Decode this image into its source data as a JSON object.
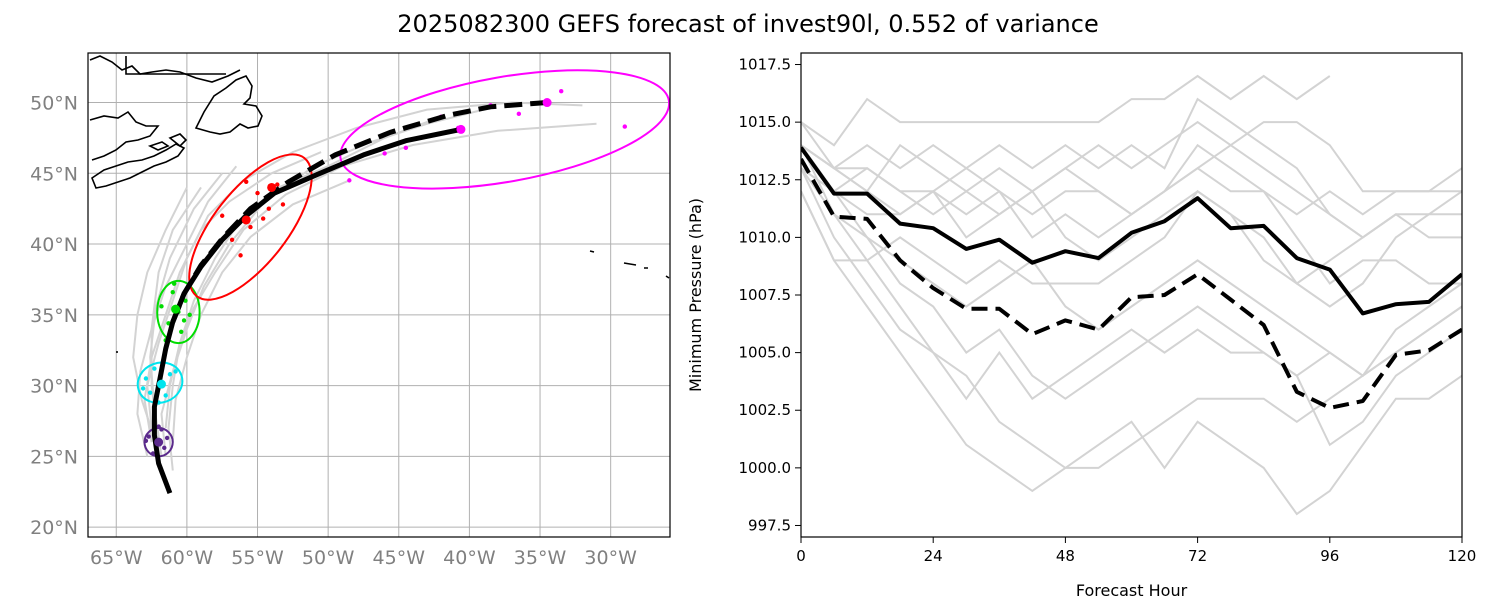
{
  "title": "2025082300 GEFS forecast of invest90l, 0.552 of variance",
  "chart_data": [
    {
      "type": "map",
      "title": "",
      "lon_range": [
        -67,
        -25.8
      ],
      "lat_range": [
        19.3,
        53.5
      ],
      "lon_ticks": [
        -65,
        -60,
        -55,
        -50,
        -45,
        -40,
        -35,
        -30
      ],
      "lon_tick_labels": [
        "65°W",
        "60°W",
        "55°W",
        "50°W",
        "45°W",
        "40°W",
        "35°W",
        "30°W"
      ],
      "lat_ticks": [
        20,
        25,
        30,
        35,
        40,
        45,
        50
      ],
      "lat_tick_labels": [
        "20°N",
        "25°N",
        "30°N",
        "35°N",
        "40°N",
        "45°N",
        "50°N"
      ],
      "grid": true,
      "mean_track": [
        [
          -61.2,
          22.4
        ],
        [
          -62.0,
          24.5
        ],
        [
          -62.3,
          26.5
        ],
        [
          -62.3,
          28.5
        ],
        [
          -61.9,
          30.5
        ],
        [
          -61.5,
          32.6
        ],
        [
          -61.0,
          34.5
        ],
        [
          -60.2,
          36.5
        ],
        [
          -59.0,
          38.4
        ],
        [
          -57.5,
          40.3
        ],
        [
          -55.8,
          42.0
        ],
        [
          -53.8,
          43.6
        ],
        [
          -50.8,
          44.9
        ],
        [
          -47.5,
          46.3
        ],
        [
          -44.5,
          47.3
        ],
        [
          -40.6,
          48.1
        ]
      ],
      "control_track": [
        [
          -61.0,
          34.5
        ],
        [
          -60.2,
          36.5
        ],
        [
          -59.0,
          38.5
        ],
        [
          -57.4,
          40.5
        ],
        [
          -55.5,
          42.5
        ],
        [
          -52.8,
          44.4
        ],
        [
          -49.5,
          46.3
        ],
        [
          -45.6,
          47.9
        ],
        [
          -41.5,
          49.1
        ],
        [
          -38.5,
          49.7
        ],
        [
          -34.5,
          50.0
        ]
      ],
      "member_tracks": [
        [
          [
            -62.5,
            26
          ],
          [
            -63.0,
            29
          ],
          [
            -62.5,
            32
          ],
          [
            -61.5,
            35
          ],
          [
            -60.5,
            38
          ],
          [
            -59.0,
            41
          ],
          [
            -57.0,
            43
          ],
          [
            -54.0,
            45
          ],
          [
            -50.5,
            46.5
          ]
        ],
        [
          [
            -61.0,
            24
          ],
          [
            -61.3,
            27
          ],
          [
            -61.0,
            30
          ],
          [
            -60.5,
            33
          ],
          [
            -59.5,
            36
          ],
          [
            -58.0,
            39
          ],
          [
            -56.0,
            42
          ],
          [
            -53.5,
            44
          ],
          [
            -50.0,
            45.5
          ],
          [
            -46.0,
            47.5
          ],
          [
            -42.0,
            49.0
          ]
        ],
        [
          [
            -62.8,
            25
          ],
          [
            -63.5,
            28
          ],
          [
            -63.3,
            31
          ],
          [
            -62.5,
            34
          ],
          [
            -61.5,
            37
          ],
          [
            -60.0,
            40
          ],
          [
            -58.5,
            43
          ],
          [
            -56.5,
            45.5
          ]
        ],
        [
          [
            -61.5,
            27
          ],
          [
            -61.2,
            30
          ],
          [
            -60.5,
            33
          ],
          [
            -59.5,
            35.5
          ],
          [
            -58.0,
            38
          ],
          [
            -56.0,
            41
          ],
          [
            -53.0,
            43.5
          ],
          [
            -49.0,
            45.5
          ],
          [
            -44.0,
            47
          ],
          [
            -38.0,
            48
          ],
          [
            -31.0,
            48.5
          ]
        ],
        [
          [
            -62.0,
            26
          ],
          [
            -62.5,
            30
          ],
          [
            -62.5,
            34
          ],
          [
            -62.0,
            38
          ],
          [
            -61.0,
            41
          ],
          [
            -59.0,
            44
          ]
        ],
        [
          [
            -61.5,
            25
          ],
          [
            -61.8,
            28
          ],
          [
            -61.0,
            31
          ],
          [
            -60.0,
            34
          ],
          [
            -58.8,
            37
          ],
          [
            -57.0,
            40
          ],
          [
            -54.5,
            43
          ],
          [
            -51.0,
            45.5
          ],
          [
            -47.0,
            47.2
          ],
          [
            -43.0,
            48.5
          ],
          [
            -39.0,
            49.5
          ]
        ],
        [
          [
            -62.2,
            26
          ],
          [
            -63.2,
            29
          ],
          [
            -63.8,
            32
          ],
          [
            -63.5,
            35
          ],
          [
            -62.8,
            38
          ],
          [
            -61.5,
            41
          ],
          [
            -60.0,
            44
          ]
        ],
        [
          [
            -61.0,
            26
          ],
          [
            -60.8,
            29
          ],
          [
            -60.0,
            32
          ],
          [
            -59.0,
            35
          ],
          [
            -57.5,
            38
          ],
          [
            -55.5,
            40.5
          ],
          [
            -52.5,
            42.8
          ],
          [
            -48.5,
            44.5
          ]
        ],
        [
          [
            -62.5,
            27
          ],
          [
            -62.8,
            30
          ],
          [
            -62.0,
            33
          ],
          [
            -61.0,
            36
          ],
          [
            -60.0,
            39
          ],
          [
            -58.5,
            42
          ],
          [
            -56.0,
            44.5
          ],
          [
            -52.5,
            46.5
          ],
          [
            -48.0,
            48.2
          ],
          [
            -43.0,
            49.5
          ],
          [
            -37.0,
            50.0
          ],
          [
            -32.0,
            49.8
          ]
        ],
        [
          [
            -61.8,
            25
          ],
          [
            -62.3,
            28.5
          ],
          [
            -62.6,
            32
          ],
          [
            -62.2,
            35.5
          ],
          [
            -61.2,
            39
          ],
          [
            -59.5,
            42.5
          ],
          [
            -57.5,
            45
          ]
        ]
      ],
      "member_points": [
        [
          -62.2,
          25.8
        ],
        [
          -62.7,
          26.4
        ],
        [
          -61.8,
          26.9
        ],
        [
          -62.4,
          25.2
        ],
        [
          -61.6,
          25.6
        ],
        [
          -62.9,
          26.1
        ],
        [
          -62.0,
          27.1
        ],
        [
          -61.4,
          26.3
        ],
        [
          -61.9,
          30.2
        ],
        [
          -62.6,
          29.5
        ],
        [
          -61.2,
          30.8
        ],
        [
          -62.9,
          30.5
        ],
        [
          -61.5,
          29.3
        ],
        [
          -62.3,
          31.2
        ],
        [
          -60.8,
          31.0
        ],
        [
          -62.0,
          28.8
        ],
        [
          -63.1,
          29.8
        ],
        [
          -61.7,
          31.5
        ],
        [
          -60.6,
          35.2
        ],
        [
          -61.3,
          34.4
        ],
        [
          -60.1,
          36.0
        ],
        [
          -61.0,
          36.6
        ],
        [
          -60.4,
          33.8
        ],
        [
          -61.8,
          35.6
        ],
        [
          -59.8,
          35.0
        ],
        [
          -60.9,
          37.2
        ],
        [
          -61.5,
          33.2
        ],
        [
          -60.2,
          34.6
        ],
        [
          -55.5,
          41.2
        ],
        [
          -56.8,
          40.3
        ],
        [
          -54.2,
          42.5
        ],
        [
          -57.5,
          42.0
        ],
        [
          -55.0,
          43.6
        ],
        [
          -53.6,
          44.2
        ],
        [
          -56.2,
          39.2
        ],
        [
          -54.6,
          41.8
        ],
        [
          -53.2,
          42.8
        ],
        [
          -55.8,
          44.4
        ],
        [
          -42.0,
          49.0
        ],
        [
          -40.8,
          48.2
        ],
        [
          -38.5,
          49.8
        ],
        [
          -44.5,
          46.8
        ],
        [
          -46.0,
          46.4
        ],
        [
          -36.5,
          49.2
        ],
        [
          -33.5,
          50.8
        ],
        [
          -29.0,
          48.3
        ],
        [
          -48.5,
          44.5
        ]
      ],
      "mean_points": [
        {
          "lon": -62.0,
          "lat": 26.0,
          "color": "#5b2a8c"
        },
        {
          "lon": -61.8,
          "lat": 30.1,
          "color": "#00e5ee"
        },
        {
          "lon": -60.8,
          "lat": 35.4,
          "color": "#00dd00"
        },
        {
          "lon": -55.8,
          "lat": 41.7,
          "color": "#ff0000"
        },
        {
          "lon": -54.0,
          "lat": 44.0,
          "color": "#ff0000"
        },
        {
          "lon": -40.6,
          "lat": 48.1,
          "color": "#ff00ff"
        },
        {
          "lon": -34.5,
          "lat": 50.0,
          "color": "#ff00ff"
        }
      ],
      "ellipses": [
        {
          "lon": -62.0,
          "lat": 26.0,
          "rx_deg": 1.0,
          "ry_deg": 1.0,
          "angle": 0,
          "color": "#5b2a8c"
        },
        {
          "lon": -61.9,
          "lat": 30.2,
          "rx_deg": 1.6,
          "ry_deg": 1.4,
          "angle": -20,
          "color": "#00e5ee"
        },
        {
          "lon": -60.6,
          "lat": 35.2,
          "rx_deg": 1.5,
          "ry_deg": 2.2,
          "angle": 0,
          "color": "#00dd00"
        },
        {
          "lon": -55.5,
          "lat": 41.2,
          "rx_deg": 6.2,
          "ry_deg": 2.6,
          "angle": -52,
          "color": "#ff0000"
        },
        {
          "lon": -37.5,
          "lat": 48.1,
          "rx_deg": 11.8,
          "ry_deg": 3.7,
          "angle": -10,
          "color": "#ff00ff"
        }
      ]
    },
    {
      "type": "line",
      "title": "",
      "xlabel": "Forecast Hour",
      "ylabel": "Minimum Pressure (hPa)",
      "xlim": [
        0,
        120
      ],
      "ylim": [
        997,
        1018
      ],
      "xticks": [
        0,
        24,
        48,
        72,
        96,
        120
      ],
      "yticks": [
        997.5,
        1000.0,
        1002.5,
        1005.0,
        1007.5,
        1010.0,
        1012.5,
        1015.0,
        1017.5
      ],
      "ytick_labels": [
        "997.5",
        "1000.0",
        "1002.5",
        "1005.0",
        "1007.5",
        "1010.0",
        "1012.5",
        "1015.0",
        "1017.5"
      ],
      "x": [
        0,
        6,
        12,
        18,
        24,
        30,
        36,
        42,
        48,
        54,
        60,
        66,
        72,
        78,
        84,
        90,
        96,
        102,
        108,
        114,
        120
      ],
      "series": [
        {
          "name": "ensemble mean",
          "style": "solid",
          "values": [
            1013.9,
            1011.9,
            1011.9,
            1010.6,
            1010.4,
            1009.5,
            1009.9,
            1008.9,
            1009.4,
            1009.1,
            1010.2,
            1010.7,
            1011.7,
            1010.4,
            1010.5,
            1009.1,
            1008.6,
            1006.7,
            1007.1,
            1007.2,
            1008.4
          ]
        },
        {
          "name": "control",
          "style": "dashed",
          "values": [
            1013.4,
            1010.9,
            1010.8,
            1009.0,
            1007.8,
            1006.9,
            1006.9,
            1005.8,
            1006.4,
            1006.0,
            1007.4,
            1007.5,
            1008.4,
            1007.3,
            1006.2,
            1003.3,
            1002.6,
            1002.9,
            1004.9,
            1005.1,
            1006.0
          ]
        }
      ],
      "members": [
        [
          1015,
          1014,
          1016,
          1015,
          1015,
          1015,
          1015,
          1015,
          1015,
          1015,
          1016,
          1016,
          1017,
          1016,
          1017,
          1016,
          1017
        ],
        [
          1014,
          1013,
          1012,
          1014,
          1013,
          1012,
          1013,
          1012,
          1013,
          1014,
          1013,
          1014,
          1015,
          1014,
          1015,
          1015,
          1014,
          1012,
          1012,
          1012,
          1013
        ],
        [
          1013,
          1012,
          1013,
          1012,
          1012,
          1011,
          1012,
          1011,
          1012,
          1012,
          1011,
          1012,
          1013,
          1012,
          1012,
          1011,
          1012,
          1011,
          1012,
          1012,
          1012
        ],
        [
          1012,
          1009,
          1009,
          1010,
          1009,
          1008,
          1009,
          1008,
          1008,
          1008,
          1009,
          1010,
          1012,
          1011,
          1009,
          1008,
          1009,
          1010,
          1011,
          1011,
          1011
        ],
        [
          1014,
          1011,
          1009,
          1007,
          1005,
          1003,
          1005,
          1003,
          1004,
          1005,
          1006,
          1005,
          1006,
          1005,
          1005,
          1004,
          1005,
          1004,
          1006,
          1007,
          1008
        ],
        [
          1013,
          1010,
          1008,
          1006,
          1005,
          1004,
          1002,
          1001,
          1000,
          1000,
          1001,
          1002,
          1003,
          1003,
          1003,
          1002,
          1003,
          1004,
          1005,
          1006,
          1007
        ],
        [
          1012,
          1009,
          1007,
          1005,
          1003,
          1001,
          1000,
          999,
          1000,
          1001,
          1002,
          1000,
          1002,
          1001,
          1000,
          998,
          999,
          1001,
          1003,
          1003,
          1004
        ],
        [
          1013,
          1012,
          1011,
          1011,
          1012,
          1013,
          1012,
          1010,
          1011,
          1010,
          1011,
          1012,
          1014,
          1013,
          1012,
          1010,
          1008,
          1009,
          1009,
          1008,
          1008
        ],
        [
          1014,
          1013,
          1014,
          1013,
          1014,
          1013,
          1014,
          1013,
          1014,
          1013,
          1014,
          1013,
          1016,
          1015,
          1014,
          1013,
          1011,
          1010,
          1011,
          1010,
          1010
        ],
        [
          1014,
          1012,
          1010,
          1009,
          1008,
          1007,
          1008,
          1009,
          1007,
          1006,
          1007,
          1008,
          1009,
          1008,
          1007,
          1006,
          1005,
          1004,
          1005,
          1006,
          1007
        ],
        [
          1015,
          1013,
          1012,
          1011,
          1012,
          1010,
          1011,
          1012,
          1010,
          1009,
          1010,
          1011,
          1012,
          1011,
          1010,
          1008,
          1007,
          1008,
          1010,
          1011,
          1012
        ],
        [
          1014,
          1013,
          1013,
          1012,
          1011,
          1012,
          1011,
          1012,
          1013,
          1012,
          1011,
          1012,
          1013,
          1014,
          1013,
          1012,
          1011,
          1010,
          1011
        ],
        [
          1013,
          1011,
          1010,
          1008,
          1007,
          1005,
          1006,
          1004,
          1003,
          1004,
          1005,
          1006,
          1007,
          1006,
          1005,
          1004,
          1001,
          1002,
          1004,
          1005,
          1006
        ]
      ]
    }
  ]
}
